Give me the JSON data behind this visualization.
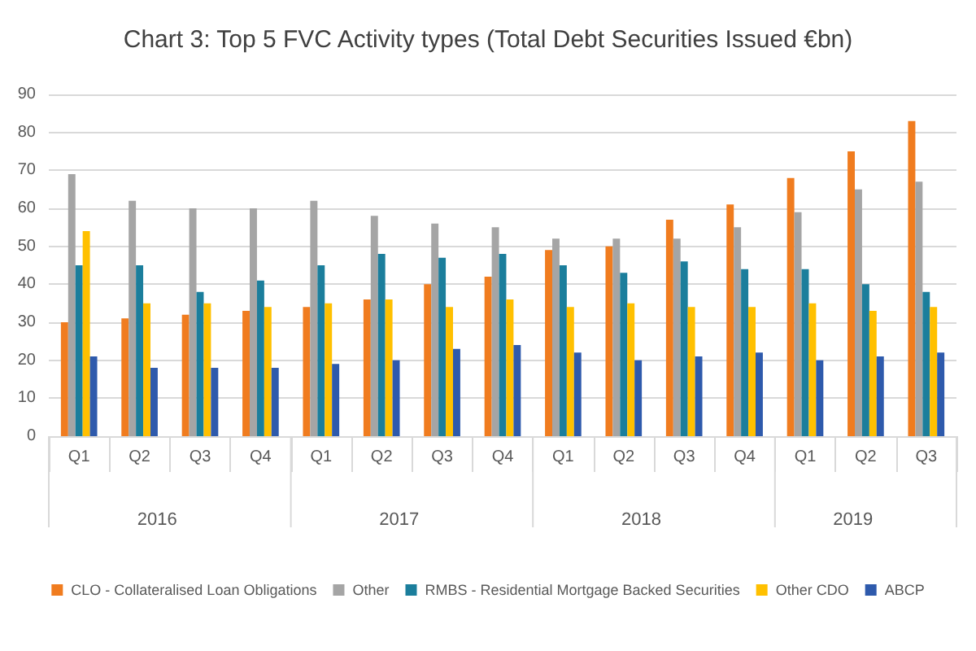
{
  "chart_data": {
    "type": "bar",
    "title": "Chart 3: Top 5 FVC Activity types (Total Debt Securities Issued €bn)",
    "categories": [
      "Q1",
      "Q2",
      "Q3",
      "Q4",
      "Q1",
      "Q2",
      "Q3",
      "Q4",
      "Q1",
      "Q2",
      "Q3",
      "Q4",
      "Q1",
      "Q2",
      "Q3"
    ],
    "annotations": [
      "2016",
      "2017",
      "2018",
      "2019"
    ],
    "series": [
      {
        "name": "CLO - Collateralised Loan Obligations",
        "color": "#f07c1f",
        "values": [
          30,
          31,
          32,
          33,
          34,
          36,
          40,
          42,
          49,
          50,
          57,
          61,
          68,
          75,
          83
        ]
      },
      {
        "name": "Other",
        "color": "#a5a5a5",
        "values": [
          69,
          62,
          60,
          60,
          62,
          58,
          56,
          55,
          52,
          52,
          52,
          55,
          59,
          65,
          67
        ]
      },
      {
        "name": "RMBS - Residential Mortgage Backed Securities",
        "color": "#1b7e9c",
        "values": [
          45,
          45,
          38,
          41,
          45,
          48,
          47,
          48,
          45,
          43,
          46,
          44,
          44,
          40,
          38
        ]
      },
      {
        "name": "Other CDO",
        "color": "#ffc000",
        "values": [
          54,
          35,
          35,
          34,
          35,
          36,
          34,
          36,
          34,
          35,
          34,
          34,
          35,
          33,
          34
        ]
      },
      {
        "name": "ABCP",
        "color": "#2e5aac",
        "values": [
          21,
          18,
          18,
          18,
          19,
          20,
          23,
          24,
          22,
          20,
          21,
          22,
          20,
          21,
          22
        ]
      }
    ],
    "ylim": [
      0,
      90
    ],
    "yticks": [
      0,
      10,
      20,
      30,
      40,
      50,
      60,
      70,
      80,
      90
    ],
    "grid": "y",
    "legend": "bottom"
  }
}
